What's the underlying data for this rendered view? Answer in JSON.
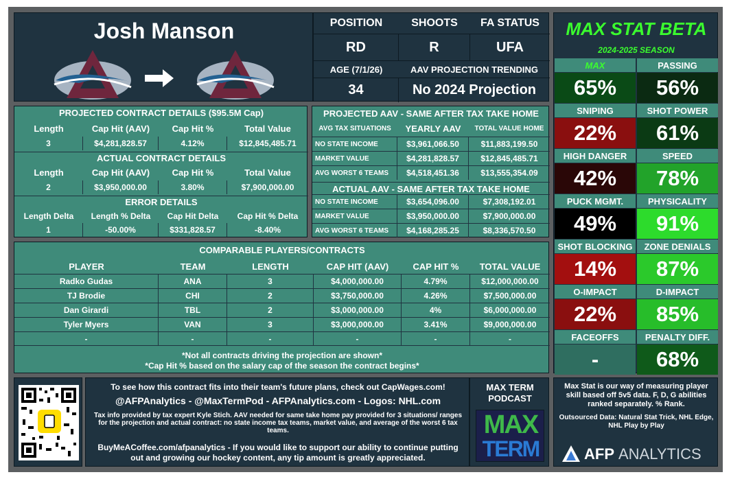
{
  "player": {
    "name": "Josh Manson"
  },
  "bio": {
    "position_label": "POSITION",
    "position": "RD",
    "shoots_label": "SHOOTS",
    "shoots": "R",
    "fa_label": "FA STATUS",
    "fa": "UFA",
    "age_label": "AGE (7/1/26)",
    "age": "34",
    "aav_trend_label": "AAV PROJECTION TRENDING",
    "aav_trend": "No 2024 Projection"
  },
  "projected": {
    "title": "PROJECTED CONTRACT DETAILS ($95.5M Cap)",
    "headers": [
      "Length",
      "Cap Hit (AAV)",
      "Cap Hit %",
      "Total Value"
    ],
    "values": [
      "3",
      "$4,281,828.57",
      "4.12%",
      "$12,845,485.71"
    ]
  },
  "actual": {
    "title": "ACTUAL CONTRACT DETAILS",
    "headers": [
      "Length",
      "Cap Hit (AAV)",
      "Cap Hit %",
      "Total Value"
    ],
    "values": [
      "2",
      "$3,950,000.00",
      "3.80%",
      "$7,900,000.00"
    ]
  },
  "error": {
    "title": "ERROR DETAILS",
    "headers": [
      "Length Delta",
      "Length % Delta",
      "Cap Hit Delta",
      "Cap Hit % Delta"
    ],
    "values": [
      "1",
      "-50.00%",
      "$331,828.57",
      "-8.40%"
    ]
  },
  "tax_projected": {
    "title": "PROJECTED AAV - SAME AFTER TAX TAKE HOME",
    "headers": [
      "AVG TAX SITUATIONS",
      "YEARLY AAV",
      "TOTAL VALUE HOME"
    ],
    "rows": [
      [
        "NO STATE INCOME",
        "$3,961,066.50",
        "$11,883,199.50"
      ],
      [
        "MARKET VALUE",
        "$4,281,828.57",
        "$12,845,485.71"
      ],
      [
        "AVG WORST 6 TEAMS",
        "$4,518,451.36",
        "$13,555,354.09"
      ]
    ]
  },
  "tax_actual": {
    "title": "ACTUAL AAV - SAME AFTER TAX TAKE HOME",
    "rows": [
      [
        "NO STATE INCOME",
        "$3,654,096.00",
        "$7,308,192.01"
      ],
      [
        "MARKET VALUE",
        "$3,950,000.00",
        "$7,900,000.00"
      ],
      [
        "AVG WORST 6 TEAMS",
        "$4,168,285.25",
        "$8,336,570.50"
      ]
    ]
  },
  "comparables": {
    "title": "COMPARABLE PLAYERS/CONTRACTS",
    "headers": [
      "PLAYER",
      "TEAM",
      "LENGTH",
      "CAP HIT (AAV)",
      "CAP HIT %",
      "TOTAL VALUE"
    ],
    "rows": [
      [
        "Radko Gudas",
        "ANA",
        "3",
        "$4,000,000.00",
        "4.79%",
        "$12,000,000.00"
      ],
      [
        "TJ Brodie",
        "CHI",
        "2",
        "$3,750,000.00",
        "4.26%",
        "$7,500,000.00"
      ],
      [
        "Dan Girardi",
        "TBL",
        "2",
        "$3,000,000.00",
        "4%",
        "$6,000,000.00"
      ],
      [
        "Tyler Myers",
        "VAN",
        "3",
        "$3,000,000.00",
        "3.41%",
        "$9,000,000.00"
      ],
      [
        "-",
        "-",
        "-",
        "-",
        "-",
        "-"
      ]
    ],
    "note1": "*Not all contracts driving the projection are shown*",
    "note2": "*Cap Hit % based on the salary cap of the season the contract begins*"
  },
  "maxstat": {
    "title": "MAX STAT BETA",
    "season": "2024-2025 SEASON",
    "stats": [
      {
        "label": "MAX",
        "value": "65%",
        "color": "#0a4a16",
        "label_color": "#3bff2e"
      },
      {
        "label": "PASSING",
        "value": "56%",
        "color": "#0b2a12"
      },
      {
        "label": "SNIPING",
        "value": "22%",
        "color": "#8a0f0f"
      },
      {
        "label": "SHOT POWER",
        "value": "61%",
        "color": "#0b3a14"
      },
      {
        "label": "HIGH DANGER",
        "value": "42%",
        "color": "#2a0707"
      },
      {
        "label": "SPEED",
        "value": "78%",
        "color": "#22a32a"
      },
      {
        "label": "PUCK MGMT.",
        "value": "49%",
        "color": "#000000"
      },
      {
        "label": "PHYSICALITY",
        "value": "91%",
        "color": "#2ddb2c"
      },
      {
        "label": "SHOT BLOCKING",
        "value": "14%",
        "color": "#a30f0f"
      },
      {
        "label": "ZONE DENIALS",
        "value": "87%",
        "color": "#2bc92b"
      },
      {
        "label": "O-IMPACT",
        "value": "22%",
        "color": "#8a0f0f"
      },
      {
        "label": "D-IMPACT",
        "value": "85%",
        "color": "#27bd2a"
      },
      {
        "label": "FACEOFFS",
        "value": "-",
        "color": "#2f6e60"
      },
      {
        "label": "PENALTY DIFF.",
        "value": "68%",
        "color": "#0f5a1a"
      }
    ]
  },
  "footer": {
    "line1": "To see how this contract fits into their team's future plans, check out CapWages.com!",
    "line2": "@AFPAnalytics - @MaxTermPod - AFPAnalytics.com - Logos: NHL.com",
    "line3": "Tax info provided by tax expert Kyle Stich. AAV needed for same take home pay provided for 3 situations/ ranges for the projection and actual contract: no state income tax teams, market value, and average of the worst 6 tax teams.",
    "line4": "BuyMeACoffee.com/afpanalytics - If you would like to support our ability to continue putting out and growing our hockey content, any tip amount is greatly appreciated.",
    "podcast_title": "MAX TERM PODCAST",
    "podcast_logo_top": "MAX",
    "podcast_logo_bottom": "TERM",
    "maxstat_desc": "Max Stat is our way of measuring player skill based off 5v5 data. F, D, G abilities ranked separately. % Rank.",
    "outsourced": "Outsourced Data: Natural Stat Trick, NHL Edge, NHL Play by Play",
    "brand_a": "AFP",
    "brand_b": "ANALYTICS"
  }
}
